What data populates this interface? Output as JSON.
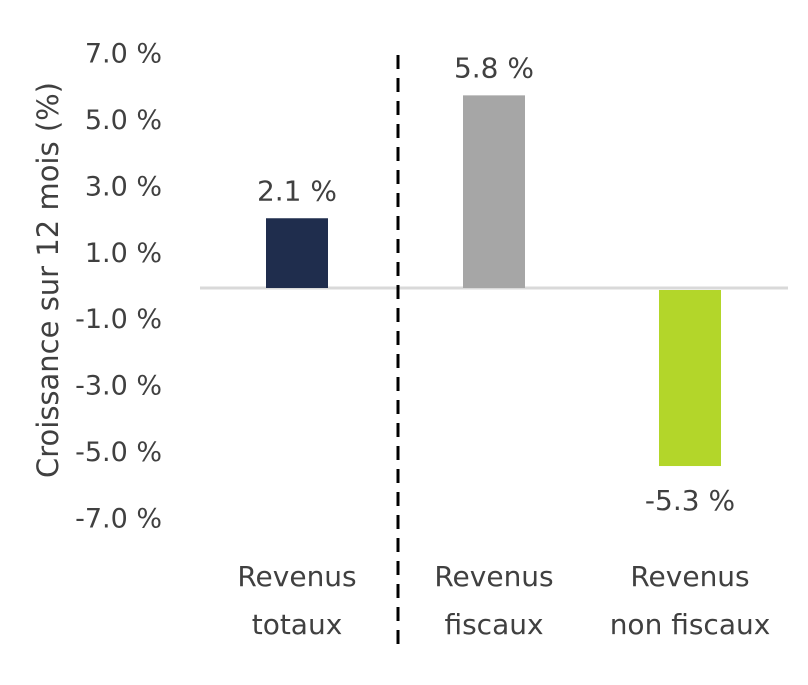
{
  "chart_data": {
    "type": "bar",
    "title": "",
    "xlabel": "",
    "ylabel": "Croissance sur 12 mois (%)",
    "ylim": [
      -7.0,
      7.0
    ],
    "yticks": [
      "7.0 %",
      "5.0 %",
      "3.0 %",
      "1.0 %",
      "-1.0 %",
      "-3.0 %",
      "-5.0 %",
      "-7.0 %"
    ],
    "categories": [
      [
        "Revenus",
        "totaux"
      ],
      [
        "Revenus",
        "fiscaux"
      ],
      [
        "Revenus",
        "non fiscaux"
      ]
    ],
    "values": [
      2.1,
      5.8,
      -5.3
    ],
    "data_labels": [
      "2.1 %",
      "5.8 %",
      "-5.3 %"
    ],
    "colors": [
      "#1f2d4d",
      "#a6a6a6",
      "#b3d62a"
    ],
    "separator": "dashed line between first and second category",
    "grid": false,
    "legend": "none"
  }
}
